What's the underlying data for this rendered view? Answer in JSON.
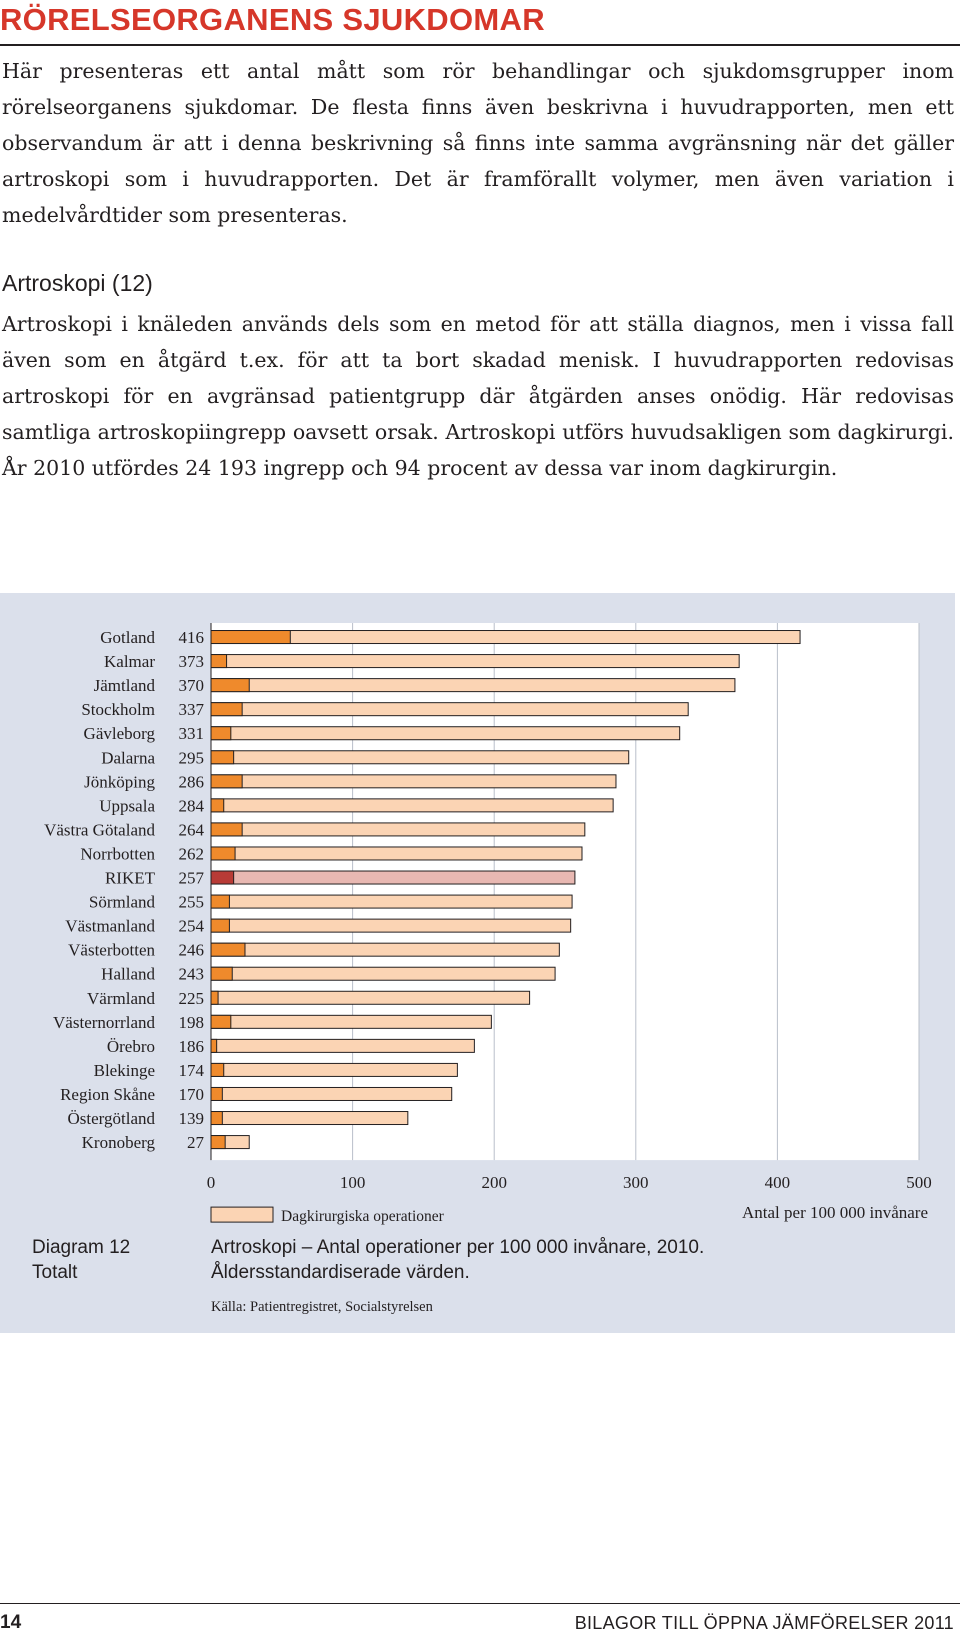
{
  "header": {
    "title": "RÖRELSEORGANENS SJUKDOMAR"
  },
  "intro": {
    "text": "Här presenteras ett antal mått som rör behandlingar och sjukdomsgrupper inom rörelseorganens sjukdomar. De flesta finns även beskrivna i huvudrapporten, men ett observandum är att i denna beskrivning så finns inte samma avgränsning när det gäller artroskopi som i huvudrapporten. Det är framförallt volymer, men även variation i medelvårdtider som presenteras."
  },
  "section": {
    "heading": "Artroskopi (12)",
    "text": "Artroskopi i knäleden används dels som en metod för att ställa diagnos, men i vissa fall även som en åtgärd t.ex. för att ta bort skadad menisk. I huvudrapporten redovisas artroskopi för en avgränsad patientgrupp där åtgärden anses onödig. Här redovisas samtliga artroskopiingrepp oavsett orsak. Artroskopi utförs huvudsakligen som dagkirurgi. År 2010 utfördes 24 193 ingrepp och 94 procent av dessa var inom dagkirurgin."
  },
  "chart_data": {
    "type": "bar",
    "orientation": "horizontal",
    "categories": [
      "Gotland",
      "Kalmar",
      "Jämtland",
      "Stockholm",
      "Gävleborg",
      "Dalarna",
      "Jönköping",
      "Uppsala",
      "Västra Götaland",
      "Norrbotten",
      "RIKET",
      "Sörmland",
      "Västmanland",
      "Västerbotten",
      "Halland",
      "Värmland",
      "Västernorrland",
      "Örebro",
      "Blekinge",
      "Region Skåne",
      "Östergötland",
      "Kronoberg"
    ],
    "value_labels": [
      "416",
      "373",
      "370",
      "337",
      "331",
      "295",
      "286",
      "284",
      "264",
      "262",
      "257",
      "255",
      "254",
      "246",
      "243",
      "225",
      "198",
      "186",
      "174",
      "170",
      "139",
      "27"
    ],
    "series": [
      {
        "name": "Dagkirurgiska operationer",
        "values": [
          416,
          373,
          370,
          337,
          331,
          295,
          286,
          284,
          264,
          262,
          257,
          255,
          254,
          246,
          243,
          225,
          198,
          186,
          174,
          170,
          139,
          27
        ]
      },
      {
        "values": [
          56,
          11,
          27,
          22,
          14,
          16,
          22,
          9,
          22,
          17,
          16,
          13,
          13,
          24,
          15,
          5,
          14,
          4,
          9,
          8,
          8,
          10
        ]
      }
    ],
    "highlight_category": "RIKET",
    "xlim": [
      0,
      500
    ],
    "xticks": [
      "0",
      "100",
      "200",
      "300",
      "400",
      "500"
    ],
    "xlabel": "Antal per 100 000 invånare",
    "legend_placement": "bottom-left",
    "grid": true,
    "colors": {
      "total": "#fbd4b4",
      "highlight_total": "#e8b8b2",
      "segment": "#ef8a2c",
      "highlight_segment": "#b83b36",
      "stroke": "#231f20",
      "panel": "#dbe0eb",
      "plot": "#ffffff",
      "grid": "#b9bfca"
    }
  },
  "caption": {
    "label_1": "Diagram 12",
    "label_2": "Totalt",
    "line_1": "Artroskopi – Antal operationer per 100 000 invånare, 2010.",
    "line_2": "Åldersstandardiserade värden.",
    "source": "Källa: Patientregistret, Socialstyrelsen"
  },
  "footer": {
    "page_number": "14",
    "running_title": "BILAGOR TILL ÖPPNA JÄMFÖRELSER 2011"
  }
}
